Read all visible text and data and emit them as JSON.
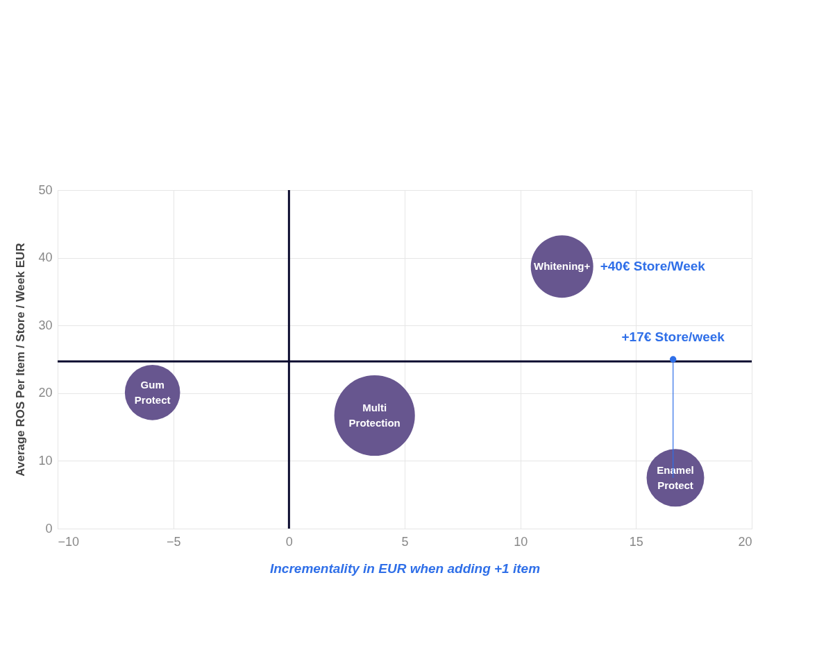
{
  "chart_data": {
    "type": "bubble",
    "xlabel": "Incrementality in EUR when adding +1 item",
    "ylabel": "Average ROS Per Item / Store / Week EUR",
    "xlim": [
      -10,
      20
    ],
    "xticks": [
      -10,
      -5,
      0,
      5,
      10,
      15,
      20
    ],
    "ylim": [
      0,
      50
    ],
    "yticks": [
      0,
      10,
      20,
      30,
      40,
      50
    ],
    "grid": true,
    "series": [
      {
        "name": "Gum Protect",
        "color": "#67568f",
        "x": [
          -5.9
        ],
        "values": [
          20.1
        ],
        "sizes": [
          0.47
        ]
      },
      {
        "name": "Multi Protection",
        "color": "#67568f",
        "x": [
          3.7
        ],
        "values": [
          16.7
        ],
        "sizes": [
          1
        ]
      },
      {
        "name": "Whitening+",
        "color": "#67568f",
        "x": [
          11.8
        ],
        "values": [
          38.7
        ],
        "sizes": [
          0.6
        ]
      },
      {
        "name": "Enamel Protect",
        "color": "#67568f",
        "x": [
          16.7
        ],
        "values": [
          7.5
        ],
        "sizes": [
          0.51
        ]
      }
    ],
    "ref_lines": [
      {
        "axis": "x",
        "value": 0,
        "color": "#0b0b2e"
      },
      {
        "axis": "y",
        "value": 24.7,
        "color": "#0b0b2e"
      }
    ],
    "annotations": [
      {
        "text": "+40€ Store/Week",
        "x": 11.8,
        "y": 38.7
      },
      {
        "text": "+17€ Store/week",
        "x": 16.6,
        "y": 25.0
      }
    ]
  }
}
